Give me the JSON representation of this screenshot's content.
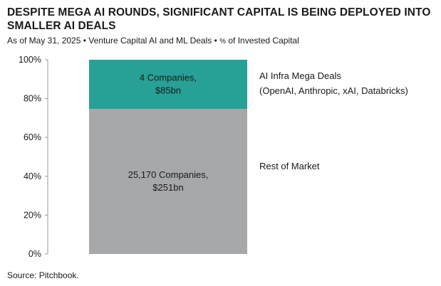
{
  "title": "DESPITE MEGA AI ROUNDS, SIGNIFICANT CAPITAL IS BEING DEPLOYED INTO SMALLER AI DEALS",
  "subtitle": {
    "prefix": "As of May 31, 2025 • Venture Capital AI and ML Deals • ",
    "pct_symbol": "%",
    "suffix": " of Invested Capital"
  },
  "source": "Source: Pitchbook.",
  "colors": {
    "mega_deals": "#27a195",
    "rest_of_market": "#a7a8aa",
    "axis": "#999999"
  },
  "chart_data": {
    "type": "bar",
    "stacked": true,
    "ylim": [
      0,
      100
    ],
    "yticks": [
      "0%",
      "20%",
      "40%",
      "60%",
      "80%",
      "100%"
    ],
    "categories": [
      ""
    ],
    "series": [
      {
        "name": "Rest of Market",
        "values": [
          74.7
        ],
        "bar_label_lines": [
          "25,170 Companies,",
          "$251bn"
        ]
      },
      {
        "name": "AI Infra Mega Deals",
        "values": [
          25.3
        ],
        "bar_label_lines": [
          "4 Companies,",
          "$85bn"
        ],
        "annotation_lines": [
          "AI Infra Mega Deals",
          "(OpenAI, Anthropic, xAI, Databricks)"
        ]
      }
    ],
    "grid": false,
    "legend": "none"
  }
}
